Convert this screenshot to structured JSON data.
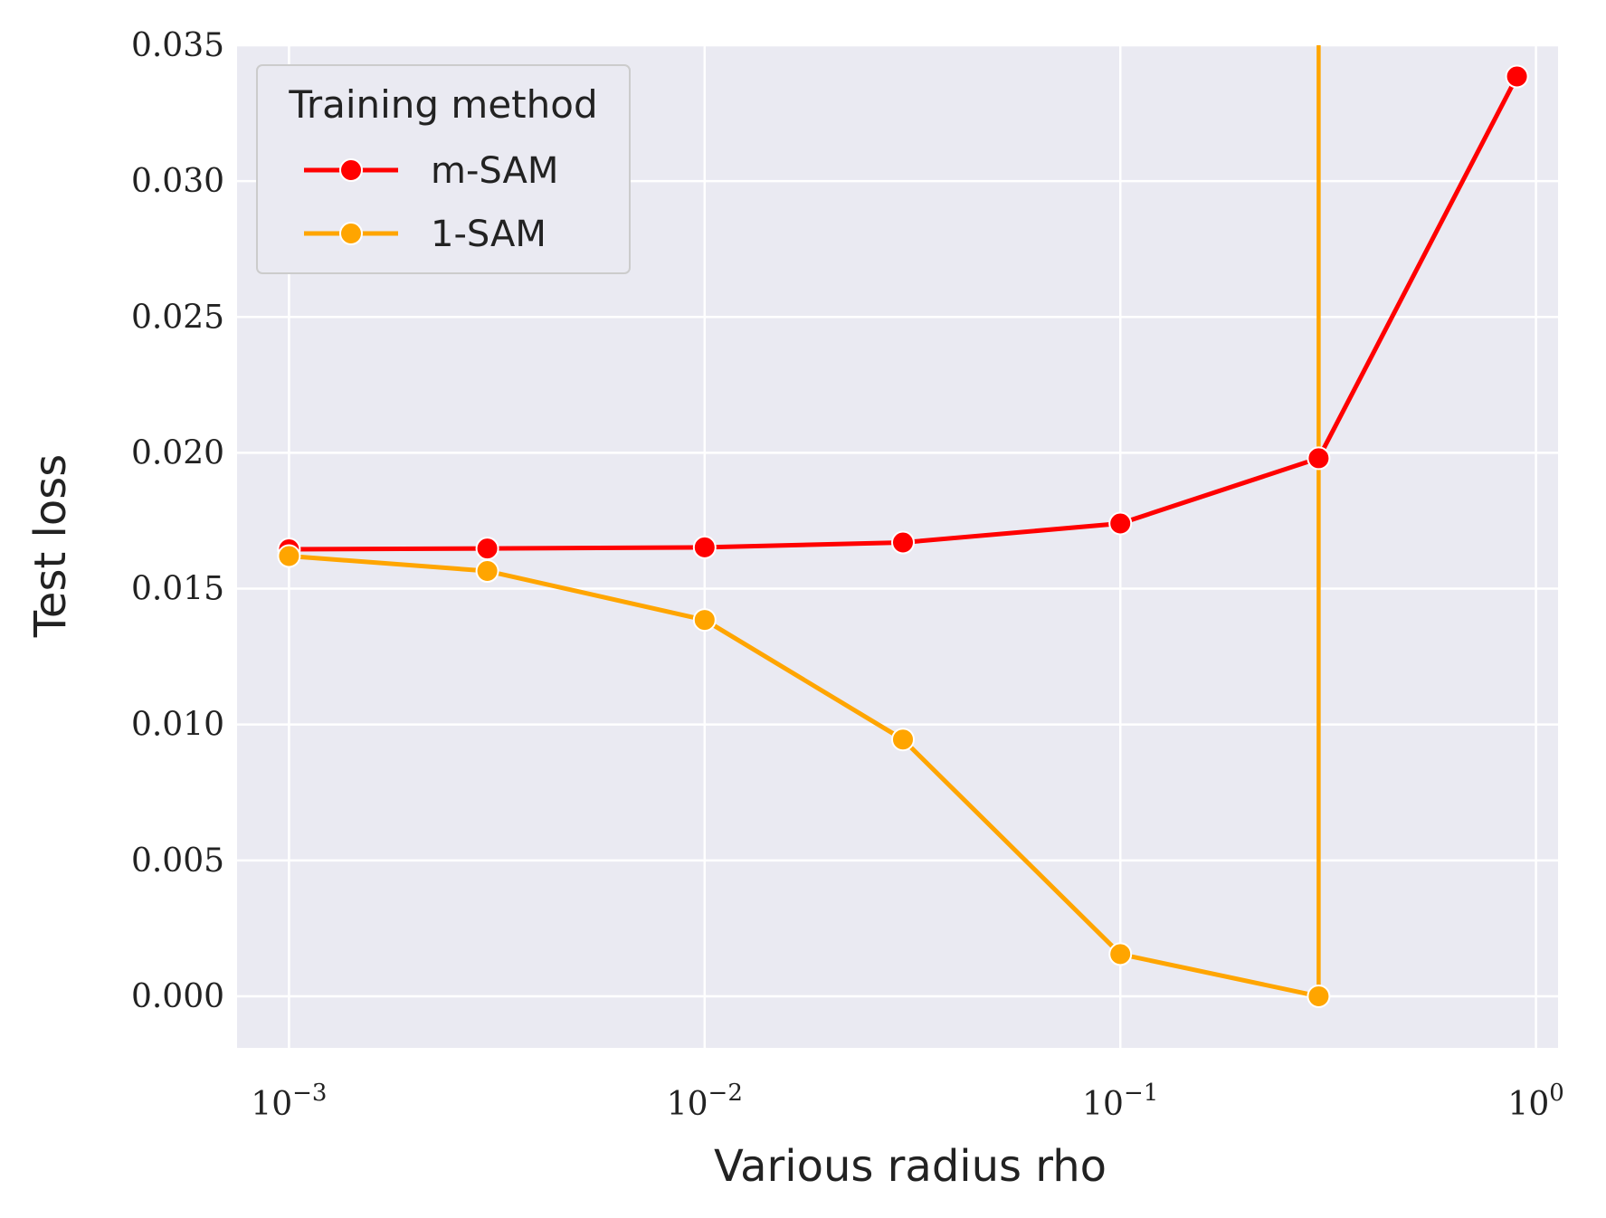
{
  "chart_data": {
    "type": "line",
    "xscale": "log",
    "xlabel": "Various radius rho",
    "ylabel": "Test loss",
    "xlim": [
      0.00075,
      1.13
    ],
    "ylim": [
      -0.0019,
      0.035
    ],
    "xticks": [
      {
        "value": 0.001,
        "base": "10",
        "exp": "−3"
      },
      {
        "value": 0.01,
        "base": "10",
        "exp": "−2"
      },
      {
        "value": 0.1,
        "base": "10",
        "exp": "−1"
      },
      {
        "value": 1,
        "base": "10",
        "exp": "0"
      }
    ],
    "yticks": [
      {
        "value": 0.0,
        "label": "0.000"
      },
      {
        "value": 0.005,
        "label": "0.005"
      },
      {
        "value": 0.01,
        "label": "0.010"
      },
      {
        "value": 0.015,
        "label": "0.015"
      },
      {
        "value": 0.02,
        "label": "0.020"
      },
      {
        "value": 0.025,
        "label": "0.025"
      },
      {
        "value": 0.03,
        "label": "0.030"
      },
      {
        "value": 0.035,
        "label": "0.035"
      }
    ],
    "grid": true,
    "legend": {
      "title": "Training method",
      "position": "top-left"
    },
    "series": [
      {
        "name": "m-SAM",
        "color": "#ff0000",
        "x": [
          0.001,
          0.003,
          0.01,
          0.03,
          0.1,
          0.3,
          0.9
        ],
        "y": [
          0.01645,
          0.01648,
          0.01652,
          0.0167,
          0.0174,
          0.0198,
          0.03385
        ]
      },
      {
        "name": "1-SAM",
        "color": "#ffa500",
        "x": [
          0.001,
          0.003,
          0.01,
          0.03,
          0.1,
          0.3
        ],
        "y": [
          0.0162,
          0.01565,
          0.01385,
          0.00945,
          0.00155,
          0.0
        ],
        "vertical_line_at_x": 0.3
      }
    ]
  }
}
